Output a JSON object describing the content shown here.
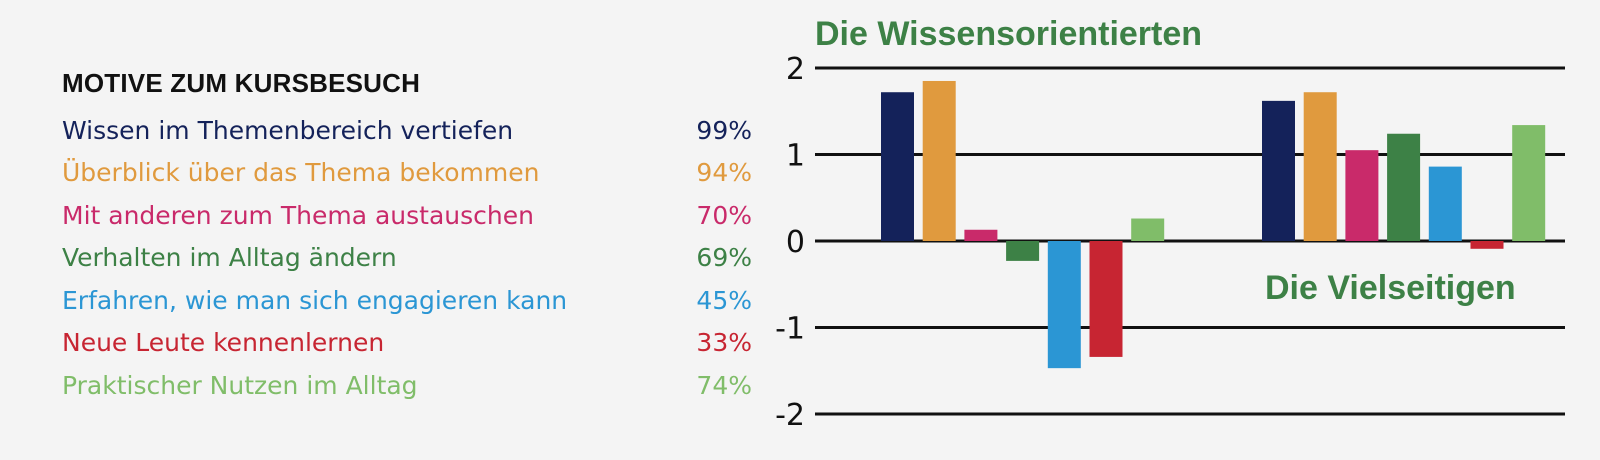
{
  "legend": {
    "title": "MOTIVE ZUM KURSBESUCH",
    "items": [
      {
        "label": "Wissen im Themenbereich vertiefen",
        "percent": "99%",
        "color": "#14225a"
      },
      {
        "label": "Überblick über das Thema bekommen",
        "percent": "94%",
        "color": "#e09a3e"
      },
      {
        "label": "Mit anderen zum Thema austauschen",
        "percent": "70%",
        "color": "#c92a6a"
      },
      {
        "label": "Verhalten im Alltag ändern",
        "percent": "69%",
        "color": "#3d8146"
      },
      {
        "label": "Erfahren, wie man sich engagieren kann",
        "percent": "45%",
        "color": "#2b96d4"
      },
      {
        "label": "Neue Leute kennenlernen",
        "percent": "33%",
        "color": "#c72532"
      },
      {
        "label": "Praktischer Nutzen im Alltag",
        "percent": "74%",
        "color": "#80bd69"
      }
    ]
  },
  "chart_data": {
    "type": "bar",
    "categories": [
      "Die Wissensorientierten",
      "Die Vielseitigen"
    ],
    "series": [
      {
        "name": "Wissen im Themenbereich vertiefen",
        "color": "#14225a",
        "values": [
          1.72,
          1.62
        ]
      },
      {
        "name": "Überblick über das Thema bekommen",
        "color": "#e09a3e",
        "values": [
          1.85,
          1.72
        ]
      },
      {
        "name": "Mit anderen zum Thema austauschen",
        "color": "#c92a6a",
        "values": [
          0.13,
          1.05
        ]
      },
      {
        "name": "Verhalten im Alltag ändern",
        "color": "#3d8146",
        "values": [
          -0.23,
          1.24
        ]
      },
      {
        "name": "Erfahren, wie man sich engagieren kann",
        "color": "#2b96d4",
        "values": [
          -1.47,
          0.86
        ]
      },
      {
        "name": "Neue Leute kennenlernen",
        "color": "#c72532",
        "values": [
          -1.34,
          -0.09
        ]
      },
      {
        "name": "Praktischer Nutzen im Alltag",
        "color": "#80bd69",
        "values": [
          0.26,
          1.34
        ]
      }
    ],
    "ylim": [
      -2,
      2
    ],
    "yticks": [
      2,
      1,
      0,
      -1,
      -2
    ],
    "ytick_labels": [
      "2",
      "1",
      "0",
      "-1",
      "-2"
    ],
    "grid": true,
    "legend_position": "left"
  }
}
